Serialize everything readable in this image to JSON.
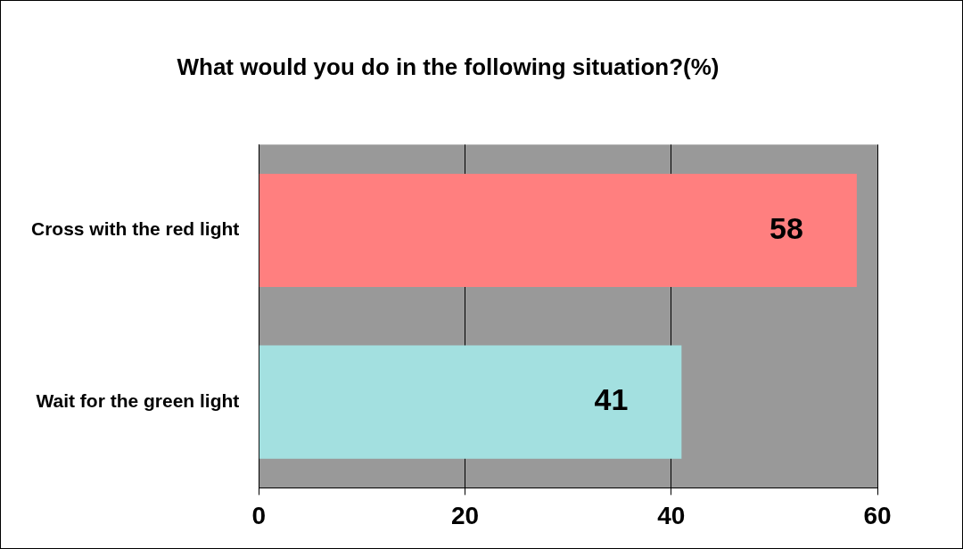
{
  "chart_data": {
    "type": "bar",
    "orientation": "horizontal",
    "title": "What would you do in the following situation?(%)",
    "categories": [
      "Cross with the red light",
      "Wait for the green light"
    ],
    "values": [
      58,
      41
    ],
    "colors": [
      "#ff7f7f",
      "#a3e0e0"
    ],
    "xlim": [
      0,
      60
    ],
    "xticks": [
      0,
      20,
      40,
      60
    ],
    "grid": "x",
    "data_labels": true,
    "legend": false
  }
}
